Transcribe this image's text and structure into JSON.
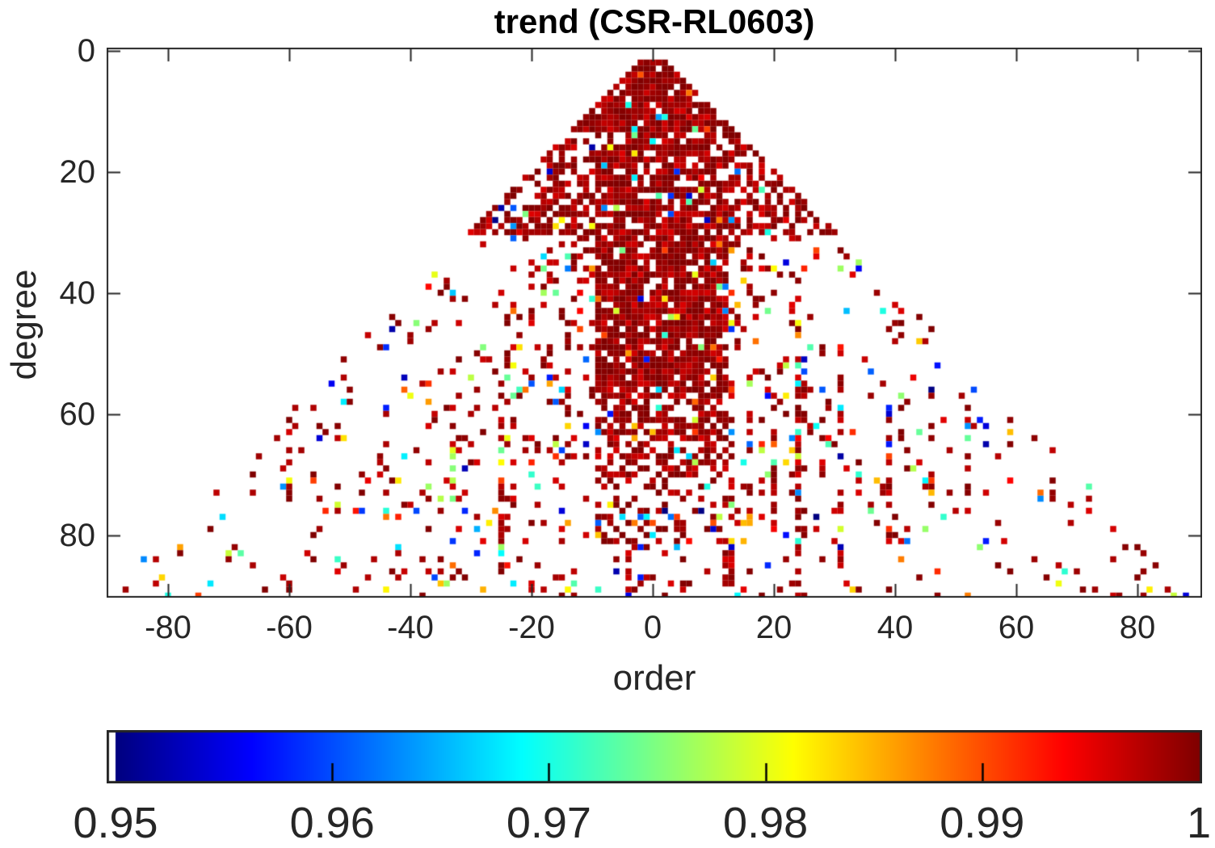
{
  "title": {
    "text": "trend (CSR-RL0603)"
  },
  "axes": {
    "xlabel": "order",
    "ylabel": "degree",
    "x_tick_labels": [
      "-80",
      "-60",
      "-40",
      "-20",
      "0",
      "20",
      "40",
      "60",
      "80"
    ],
    "x_tick_values": [
      -80,
      -60,
      -40,
      -20,
      0,
      20,
      40,
      60,
      80
    ],
    "y_tick_labels": [
      "0",
      "20",
      "40",
      "60",
      "80"
    ],
    "y_tick_values": [
      0,
      20,
      40,
      60,
      80
    ],
    "xlim": [
      -90,
      90
    ],
    "ylim": [
      0,
      91
    ],
    "box_color": "#262626",
    "text_color": "#262626"
  },
  "colorbar": {
    "orientation": "horizontal",
    "tick_labels": [
      "0.95",
      "0.96",
      "0.97",
      "0.98",
      "0.99",
      "1"
    ],
    "tick_values": [
      0.95,
      0.96,
      0.97,
      0.98,
      0.99,
      1
    ],
    "min": 0.95,
    "max": 1,
    "colormap": "jet",
    "below_min_color": "#ffffff",
    "border_color": "#262626"
  },
  "chart_data": {
    "type": "heatmap",
    "title": "trend (CSR-RL0603)",
    "xlabel": "order",
    "ylabel": "degree",
    "x_range": [
      -90,
      90
    ],
    "degree_range": [
      2,
      90
    ],
    "value_range": [
      0.95,
      1
    ],
    "colormap": "jet",
    "missing_color": "#ffffff",
    "y_axis_reversed": true,
    "structure": "spherical-harmonic triangle: cells exist only where |order| <= degree; dense dark-red (values near 1) core band around small orders extending down in degree, mostly-filled dark-red apex triangle above degree 30, sparse multicolored scatter toward the triangle edges, plus vertical streaks at resonance orders",
    "generation": {
      "seed": 987654,
      "apex": {
        "d6_p": 0.95,
        "d6_hot": 0.93,
        "dmax": 13,
        "p": 0.9,
        "hot": 0.92
      },
      "wing": {
        "dmax": 30,
        "zones": [
          [
            0.5,
            0.82,
            0.9
          ],
          [
            0.8,
            0.58,
            0.85
          ],
          [
            1.01,
            0.42,
            0.8
          ]
        ],
        "edge": [
          0.93,
          0.7,
          0.88
        ]
      },
      "band": {
        "m": [
          -9,
          12
        ],
        "zones": [
          [
            55,
            0.85,
            0.9
          ],
          [
            70,
            0.6,
            0.85
          ],
          [
            82,
            0.3,
            0.75
          ],
          [
            91,
            0.12,
            0.5
          ]
        ]
      },
      "mid": {
        "rmax": 0.55,
        "zones": [
          [
            45,
            0.28,
            0.5
          ],
          [
            70,
            0.15,
            0.45
          ],
          [
            91,
            0.1,
            0.4
          ]
        ]
      },
      "outer": {
        "zones": [
          [
            60,
            0.08,
            0.38
          ],
          [
            91,
            0.05,
            0.38
          ]
        ]
      },
      "streaks": [
        {
          "m": -60,
          "d": [
            62,
            78
          ],
          "p": 0.3,
          "hot": 0.5
        },
        {
          "m": -52,
          "d": [
            62,
            84
          ],
          "p": 0.3,
          "hot": 0.5
        },
        {
          "m": -44,
          "d": [
            58,
            78
          ],
          "p": 0.3,
          "hot": 0.5
        },
        {
          "m": -37,
          "d": [
            54,
            75
          ],
          "p": 0.32,
          "hot": 0.5
        },
        {
          "m": -33,
          "d": [
            58,
            82
          ],
          "p": 0.35,
          "hot": 0.5
        },
        {
          "m": -25,
          "d": [
            54,
            86
          ],
          "p": 0.5,
          "hot": 0.55
        },
        {
          "m": -17,
          "d": [
            50,
            70
          ],
          "p": 0.35,
          "hot": 0.5
        },
        {
          "m": -14,
          "d": [
            46,
            72
          ],
          "p": 0.45,
          "hot": 0.55
        },
        {
          "m": -4,
          "d": [
            78,
            90
          ],
          "p": 0.55,
          "hot": 0.7
        },
        {
          "m": 5,
          "d": [
            80,
            90
          ],
          "p": 0.4,
          "hot": 0.7
        },
        {
          "m": 13,
          "d": [
            55,
            88
          ],
          "p": 0.55,
          "hot": 0.6
        },
        {
          "m": 16,
          "d": [
            55,
            80
          ],
          "p": 0.45,
          "hot": 0.55
        },
        {
          "m": 20,
          "d": [
            58,
            76
          ],
          "p": 0.5,
          "hot": 0.6
        },
        {
          "m": 24,
          "d": [
            45,
            90
          ],
          "p": 0.78,
          "hot": 0.65
        },
        {
          "m": 25,
          "d": [
            50,
            80
          ],
          "p": 0.4,
          "hot": 0.55
        },
        {
          "m": 28,
          "d": [
            48,
            70
          ],
          "p": 0.35,
          "hot": 0.5
        },
        {
          "m": 31,
          "d": [
            50,
            86
          ],
          "p": 0.4,
          "hot": 0.55
        },
        {
          "m": 39,
          "d": [
            60,
            82
          ],
          "p": 0.45,
          "hot": 0.45
        },
        {
          "m": 46,
          "d": [
            55,
            75
          ],
          "p": 0.4,
          "hot": 0.5
        },
        {
          "m": 52,
          "d": [
            58,
            78
          ],
          "p": 0.3,
          "hot": 0.5
        },
        {
          "m": 59,
          "d": [
            58,
            80
          ],
          "p": 0.35,
          "hot": 0.5
        },
        {
          "m": 66,
          "d": [
            66,
            82
          ],
          "p": 0.3,
          "hot": 0.5
        }
      ],
      "hot_spread": 0.0045,
      "mixed_top_fraction": 0.45,
      "mixed_top_min": 0.9952
    }
  }
}
